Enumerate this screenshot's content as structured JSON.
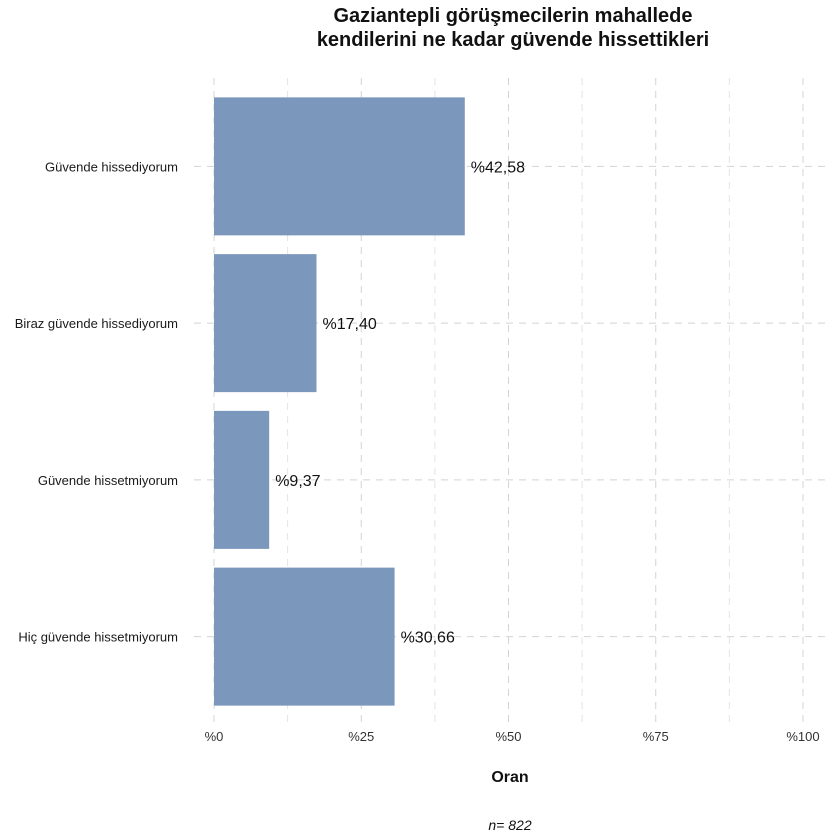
{
  "chart_data": {
    "type": "bar",
    "orientation": "horizontal",
    "title_lines": [
      "Gaziantepli görüşmecilerin mahallede",
      "kendilerini ne kadar güvende hissettikleri"
    ],
    "categories": [
      "Güvende hissediyorum",
      "Biraz güvende hissediyorum",
      "Güvende hissetmiyorum",
      "Hiç güvende hissetmiyorum"
    ],
    "values": [
      42.58,
      17.4,
      9.37,
      30.66
    ],
    "value_labels": [
      "%42,58",
      "%17,40",
      "%9,37",
      "%30,66"
    ],
    "xlabel": "Oran",
    "ylabel": "",
    "xlim": [
      0,
      100
    ],
    "xticks": [
      0,
      25,
      50,
      75,
      100
    ],
    "xtick_labels": [
      "%0",
      "%25",
      "%50",
      "%75",
      "%100"
    ],
    "caption": "n=  822",
    "grid": true,
    "bar_color": "#7b98bc"
  }
}
